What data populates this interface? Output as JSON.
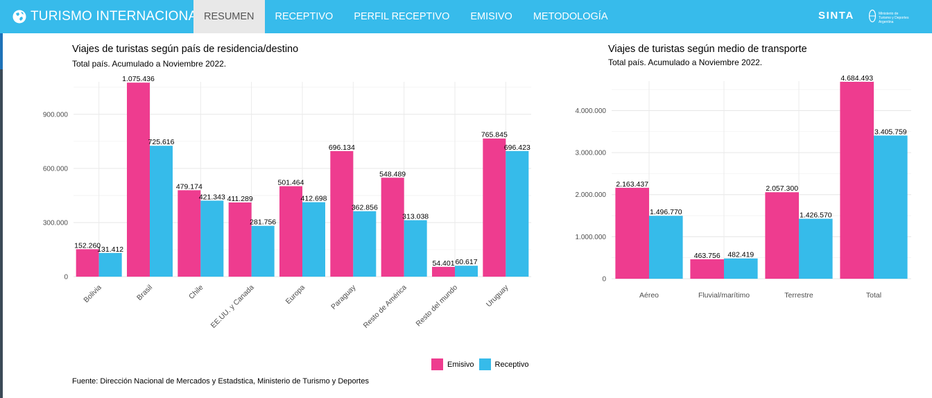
{
  "header": {
    "app_title": "TURISMO INTERNACIONAL",
    "tabs": [
      {
        "label": "RESUMEN",
        "active": true
      },
      {
        "label": "RECEPTIVO",
        "active": false
      },
      {
        "label": "PERFIL RECEPTIVO",
        "active": false
      },
      {
        "label": "EMISIVO",
        "active": false
      },
      {
        "label": "METODOLOGÍA",
        "active": false
      }
    ],
    "sinta_label": "SINTA",
    "ministerio_label": "Ministerio de Turismo y Deportes Argentina"
  },
  "colors": {
    "header_bg": "#37bbeb",
    "emisivo": "#ee3c8f",
    "receptivo": "#36bbea"
  },
  "legend": {
    "emisivo": "Emisivo",
    "receptivo": "Receptivo"
  },
  "source_note": "Fuente: Dirección Nacional de Mercados y Estadstica, Ministerio de Turismo y Deportes",
  "chart_data": [
    {
      "type": "bar",
      "title": "Viajes de turistas según país de residencia/destino",
      "subtitle": "Total país. Acumulado a Noviembre 2022.",
      "categories": [
        "Bolivia",
        "Brasil",
        "Chile",
        "EE.UU. y Canada",
        "Europa",
        "Paraguay",
        "Resto de América",
        "Resto del mundo",
        "Uruguay"
      ],
      "series": [
        {
          "name": "Emisivo",
          "values": [
            152260,
            1075436,
            479174,
            411289,
            501464,
            696134,
            548489,
            54401,
            765845
          ],
          "labels": [
            "152.260",
            "1.075.436",
            "479.174",
            "411.289",
            "501.464",
            "696.134",
            "548.489",
            "54.401",
            "765.845"
          ]
        },
        {
          "name": "Receptivo",
          "values": [
            131412,
            725616,
            421343,
            281756,
            412698,
            362856,
            313038,
            60617,
            696423
          ],
          "labels": [
            "131.412",
            "725.616",
            "421.343",
            "281.756",
            "412.698",
            "362.856",
            "313.038",
            "60.617",
            "696.423"
          ]
        }
      ],
      "yticks": [
        0,
        300000,
        600000,
        900000
      ],
      "ytick_labels": [
        "0",
        "300.000",
        "600.000",
        "900.000"
      ],
      "ylim": [
        0,
        1080000
      ],
      "grid": true,
      "legend_position": "bottom-right"
    },
    {
      "type": "bar",
      "title": "Viajes de turistas según medio de transporte",
      "subtitle": "Total país. Acumulado a Noviembre 2022.",
      "categories": [
        "Aéreo",
        "Fluvial/marítimo",
        "Terrestre",
        "Total"
      ],
      "series": [
        {
          "name": "Emisivo",
          "values": [
            2163437,
            463756,
            2057300,
            4684493
          ],
          "labels": [
            "2.163.437",
            "463.756",
            "2.057.300",
            "4.684.493"
          ]
        },
        {
          "name": "Receptivo",
          "values": [
            1496770,
            482419,
            1426570,
            3405759
          ],
          "labels": [
            "1.496.770",
            "482.419",
            "1.426.570",
            "3.405.759"
          ]
        }
      ],
      "yticks": [
        0,
        1000000,
        2000000,
        3000000,
        4000000
      ],
      "ytick_labels": [
        "0",
        "1.000.000",
        "2.000.000",
        "3.000.000",
        "4.000.000"
      ],
      "ylim": [
        0,
        4700000
      ],
      "grid": true
    }
  ]
}
